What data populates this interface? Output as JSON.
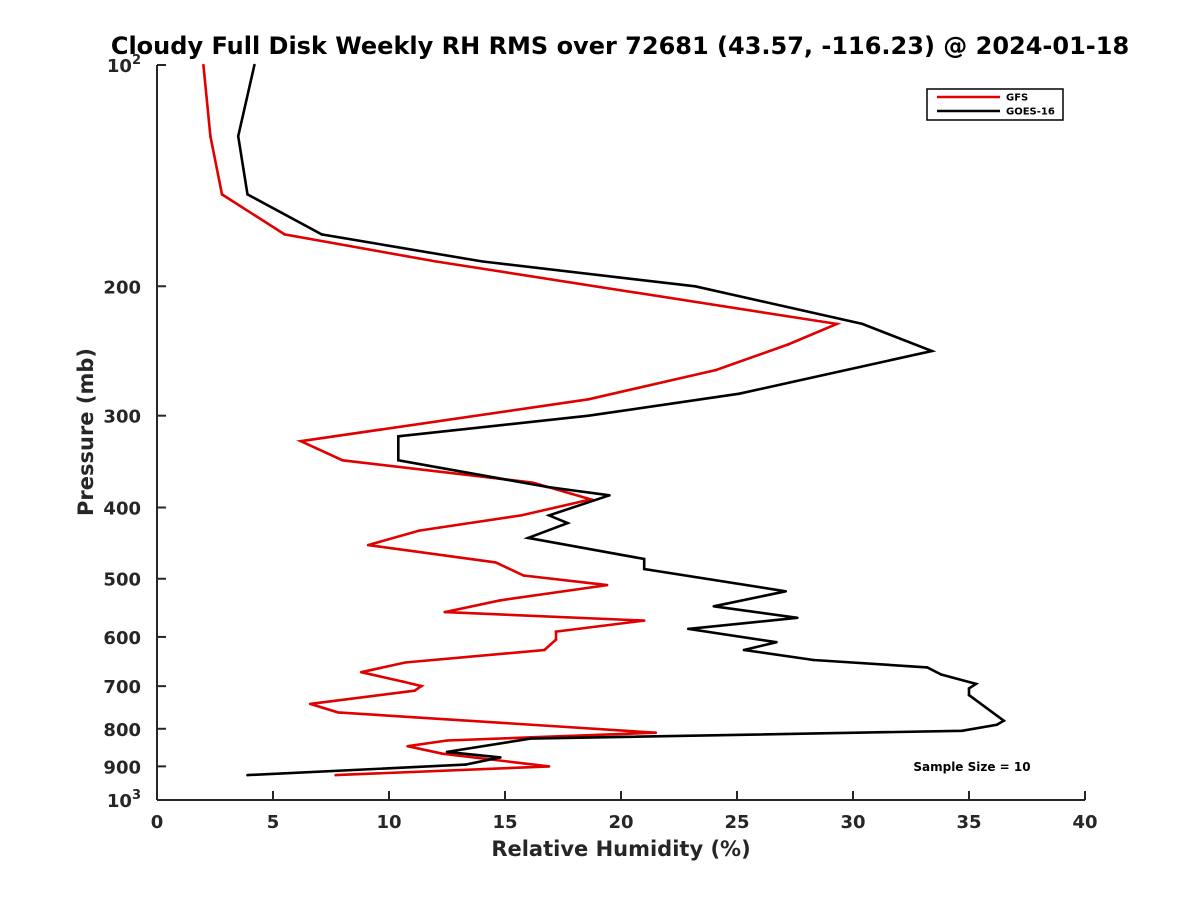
{
  "chart_data": {
    "type": "line",
    "title": "Cloudy Full Disk Weekly RH RMS over 72681 (43.57, -116.23) @ 2024-01-18",
    "xlabel": "Relative Humidity (%)",
    "ylabel": "Pressure (mb)",
    "xlim": [
      0,
      40
    ],
    "ylim": [
      100,
      1000
    ],
    "y_scale": "log",
    "y_reversed": true,
    "x_ticks": [
      "0",
      "5",
      "10",
      "15",
      "20",
      "25",
      "30",
      "35",
      "40"
    ],
    "y_ticks": [
      {
        "value": 100,
        "label": "10",
        "sup": "2"
      },
      {
        "value": 200,
        "label": "200",
        "sup": ""
      },
      {
        "value": 300,
        "label": "300",
        "sup": ""
      },
      {
        "value": 400,
        "label": "400",
        "sup": ""
      },
      {
        "value": 500,
        "label": "500",
        "sup": ""
      },
      {
        "value": 600,
        "label": "600",
        "sup": ""
      },
      {
        "value": 700,
        "label": "700",
        "sup": ""
      },
      {
        "value": 800,
        "label": "800",
        "sup": ""
      },
      {
        "value": 900,
        "label": "900",
        "sup": ""
      },
      {
        "value": 1000,
        "label": "10",
        "sup": "3"
      }
    ],
    "grid": false,
    "legend_position": "top-right",
    "annotation": "Sample Size = 10",
    "series": [
      {
        "name": "GFS",
        "color": "#e00000",
        "points": [
          [
            2.0,
            100
          ],
          [
            2.3,
            125
          ],
          [
            2.8,
            150
          ],
          [
            5.5,
            170
          ],
          [
            12.0,
            185
          ],
          [
            29.3,
            225
          ],
          [
            27.2,
            240
          ],
          [
            24.1,
            260
          ],
          [
            18.6,
            285
          ],
          [
            6.2,
            325
          ],
          [
            8.0,
            345
          ],
          [
            16.2,
            370
          ],
          [
            18.7,
            390
          ],
          [
            15.7,
            410
          ],
          [
            11.3,
            430
          ],
          [
            9.1,
            450
          ],
          [
            14.6,
            475
          ],
          [
            15.8,
            495
          ],
          [
            19.4,
            510
          ],
          [
            14.8,
            535
          ],
          [
            12.4,
            555
          ],
          [
            21.0,
            570
          ],
          [
            17.2,
            590
          ],
          [
            17.2,
            605
          ],
          [
            16.7,
            625
          ],
          [
            10.7,
            650
          ],
          [
            8.8,
            670
          ],
          [
            10.6,
            690
          ],
          [
            11.4,
            700
          ],
          [
            11.1,
            710
          ],
          [
            6.6,
            740
          ],
          [
            7.8,
            760
          ],
          [
            21.5,
            810
          ],
          [
            12.5,
            830
          ],
          [
            10.8,
            845
          ],
          [
            12.3,
            865
          ],
          [
            16.9,
            900
          ],
          [
            7.7,
            925
          ]
        ]
      },
      {
        "name": "GOES-16",
        "color": "#000000",
        "points": [
          [
            4.2,
            100
          ],
          [
            3.5,
            125
          ],
          [
            3.9,
            150
          ],
          [
            7.1,
            170
          ],
          [
            14.0,
            185
          ],
          [
            23.2,
            200
          ],
          [
            30.4,
            225
          ],
          [
            33.4,
            245
          ],
          [
            25.1,
            280
          ],
          [
            18.6,
            300
          ],
          [
            10.4,
            320
          ],
          [
            10.4,
            345
          ],
          [
            16.8,
            375
          ],
          [
            19.5,
            385
          ],
          [
            16.9,
            410
          ],
          [
            17.7,
            420
          ],
          [
            16.0,
            440
          ],
          [
            21.0,
            470
          ],
          [
            21.0,
            485
          ],
          [
            27.1,
            520
          ],
          [
            24.0,
            545
          ],
          [
            27.6,
            565
          ],
          [
            22.9,
            585
          ],
          [
            26.7,
            610
          ],
          [
            25.3,
            625
          ],
          [
            28.3,
            645
          ],
          [
            33.2,
            660
          ],
          [
            33.8,
            675
          ],
          [
            35.3,
            695
          ],
          [
            35.0,
            705
          ],
          [
            35.0,
            720
          ],
          [
            36.5,
            780
          ],
          [
            36.2,
            790
          ],
          [
            34.7,
            805
          ],
          [
            16.1,
            825
          ],
          [
            12.5,
            860
          ],
          [
            14.8,
            875
          ],
          [
            13.3,
            895
          ],
          [
            3.9,
            925
          ]
        ]
      }
    ]
  }
}
